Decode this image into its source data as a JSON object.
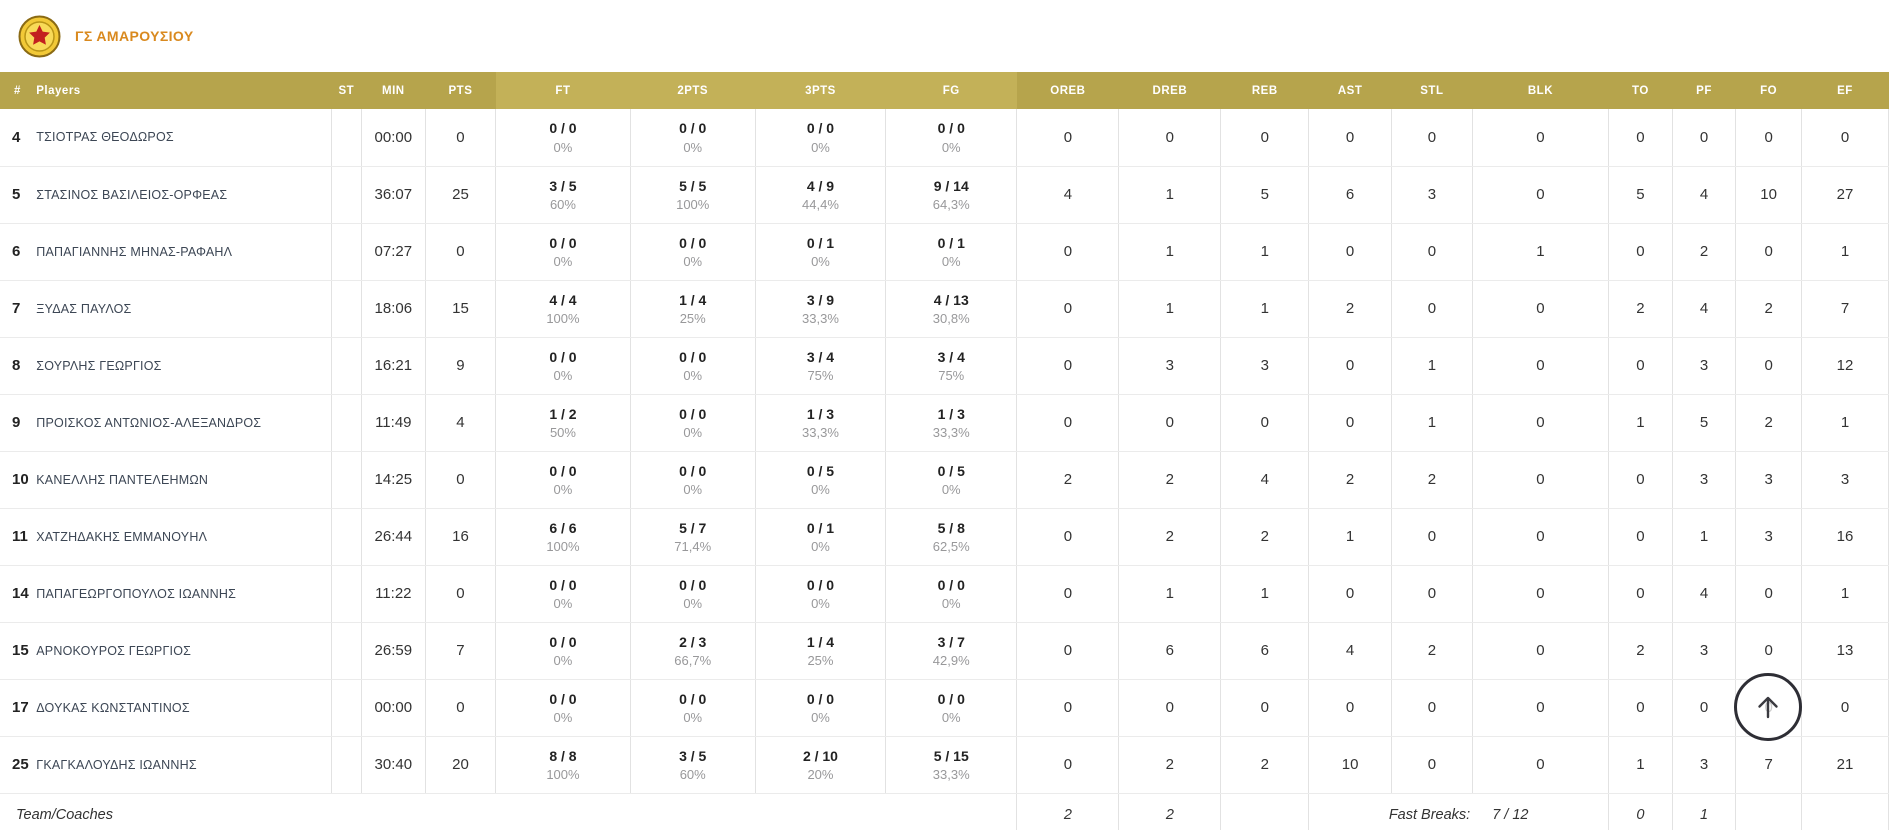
{
  "team": {
    "name": "ΓΣ ΑΜΑΡΟΥΣΙΟΥ"
  },
  "colors": {
    "header_gold": "#b6a44c",
    "header_gold_light": "#c3b158",
    "team_name_orange": "#d9891e"
  },
  "table": {
    "columns": [
      {
        "key": "num",
        "label": "#"
      },
      {
        "key": "players",
        "label": "Players"
      },
      {
        "key": "st",
        "label": "ST"
      },
      {
        "key": "min",
        "label": "MIN"
      },
      {
        "key": "pts",
        "label": "PTS"
      },
      {
        "key": "ft",
        "label": "FT",
        "shade": "light"
      },
      {
        "key": "p2",
        "label": "2PTS",
        "shade": "light"
      },
      {
        "key": "p3",
        "label": "3PTS",
        "shade": "light"
      },
      {
        "key": "fg",
        "label": "FG",
        "shade": "light"
      },
      {
        "key": "oreb",
        "label": "OREB"
      },
      {
        "key": "dreb",
        "label": "DREB"
      },
      {
        "key": "reb",
        "label": "REB"
      },
      {
        "key": "ast",
        "label": "AST"
      },
      {
        "key": "stl",
        "label": "STL"
      },
      {
        "key": "blk",
        "label": "BLK"
      },
      {
        "key": "to",
        "label": "TO"
      },
      {
        "key": "pf",
        "label": "PF"
      },
      {
        "key": "fo",
        "label": "FO"
      },
      {
        "key": "ef",
        "label": "EF"
      }
    ],
    "players": [
      {
        "num": "4",
        "name": "ΤΣΙΟΤΡΑΣ ΘΕΟΔΩΡΟΣ",
        "st": "",
        "min": "00:00",
        "pts": "0",
        "ft": "0 / 0",
        "ft_pct": "0%",
        "p2": "0 / 0",
        "p2_pct": "0%",
        "p3": "0 / 0",
        "p3_pct": "0%",
        "fg": "0 / 0",
        "fg_pct": "0%",
        "oreb": "0",
        "dreb": "0",
        "reb": "0",
        "ast": "0",
        "stl": "0",
        "blk": "0",
        "to": "0",
        "pf": "0",
        "fo": "0",
        "ef": "0"
      },
      {
        "num": "5",
        "name": "ΣΤΑΣΙΝΟΣ ΒΑΣΙΛΕΙΟΣ-ΟΡΦΕΑΣ",
        "st": "",
        "min": "36:07",
        "pts": "25",
        "ft": "3 / 5",
        "ft_pct": "60%",
        "p2": "5 / 5",
        "p2_pct": "100%",
        "p3": "4 / 9",
        "p3_pct": "44,4%",
        "fg": "9 / 14",
        "fg_pct": "64,3%",
        "oreb": "4",
        "dreb": "1",
        "reb": "5",
        "ast": "6",
        "stl": "3",
        "blk": "0",
        "to": "5",
        "pf": "4",
        "fo": "10",
        "ef": "27"
      },
      {
        "num": "6",
        "name": "ΠΑΠΑΓΙΑΝΝΗΣ ΜΗΝΑΣ-ΡΑΦΑΗΛ",
        "st": "",
        "min": "07:27",
        "pts": "0",
        "ft": "0 / 0",
        "ft_pct": "0%",
        "p2": "0 / 0",
        "p2_pct": "0%",
        "p3": "0 / 1",
        "p3_pct": "0%",
        "fg": "0 / 1",
        "fg_pct": "0%",
        "oreb": "0",
        "dreb": "1",
        "reb": "1",
        "ast": "0",
        "stl": "0",
        "blk": "1",
        "to": "0",
        "pf": "2",
        "fo": "0",
        "ef": "1"
      },
      {
        "num": "7",
        "name": "ΞΥΔΑΣ ΠΑΥΛΟΣ",
        "st": "",
        "min": "18:06",
        "pts": "15",
        "ft": "4 / 4",
        "ft_pct": "100%",
        "p2": "1 / 4",
        "p2_pct": "25%",
        "p3": "3 / 9",
        "p3_pct": "33,3%",
        "fg": "4 / 13",
        "fg_pct": "30,8%",
        "oreb": "0",
        "dreb": "1",
        "reb": "1",
        "ast": "2",
        "stl": "0",
        "blk": "0",
        "to": "2",
        "pf": "4",
        "fo": "2",
        "ef": "7"
      },
      {
        "num": "8",
        "name": "ΣΟΥΡΛΗΣ ΓΕΩΡΓΙΟΣ",
        "st": "",
        "min": "16:21",
        "pts": "9",
        "ft": "0 / 0",
        "ft_pct": "0%",
        "p2": "0 / 0",
        "p2_pct": "0%",
        "p3": "3 / 4",
        "p3_pct": "75%",
        "fg": "3 / 4",
        "fg_pct": "75%",
        "oreb": "0",
        "dreb": "3",
        "reb": "3",
        "ast": "0",
        "stl": "1",
        "blk": "0",
        "to": "0",
        "pf": "3",
        "fo": "0",
        "ef": "12"
      },
      {
        "num": "9",
        "name": "ΠΡΟΙΣΚΟΣ ΑΝΤΩΝΙΟΣ-ΑΛΕΞΑΝΔΡΟΣ",
        "st": "",
        "min": "11:49",
        "pts": "4",
        "ft": "1 / 2",
        "ft_pct": "50%",
        "p2": "0 / 0",
        "p2_pct": "0%",
        "p3": "1 / 3",
        "p3_pct": "33,3%",
        "fg": "1 / 3",
        "fg_pct": "33,3%",
        "oreb": "0",
        "dreb": "0",
        "reb": "0",
        "ast": "0",
        "stl": "1",
        "blk": "0",
        "to": "1",
        "pf": "5",
        "fo": "2",
        "ef": "1"
      },
      {
        "num": "10",
        "name": "ΚΑΝΕΛΛΗΣ ΠΑΝΤΕΛΕΗΜΩΝ",
        "st": "",
        "min": "14:25",
        "pts": "0",
        "ft": "0 / 0",
        "ft_pct": "0%",
        "p2": "0 / 0",
        "p2_pct": "0%",
        "p3": "0 / 5",
        "p3_pct": "0%",
        "fg": "0 / 5",
        "fg_pct": "0%",
        "oreb": "2",
        "dreb": "2",
        "reb": "4",
        "ast": "2",
        "stl": "2",
        "blk": "0",
        "to": "0",
        "pf": "3",
        "fo": "3",
        "ef": "3"
      },
      {
        "num": "11",
        "name": "ΧΑΤΖΗΔΑΚΗΣ ΕΜΜΑΝΟΥΗΛ",
        "st": "",
        "min": "26:44",
        "pts": "16",
        "ft": "6 / 6",
        "ft_pct": "100%",
        "p2": "5 / 7",
        "p2_pct": "71,4%",
        "p3": "0 / 1",
        "p3_pct": "0%",
        "fg": "5 / 8",
        "fg_pct": "62,5%",
        "oreb": "0",
        "dreb": "2",
        "reb": "2",
        "ast": "1",
        "stl": "0",
        "blk": "0",
        "to": "0",
        "pf": "1",
        "fo": "3",
        "ef": "16"
      },
      {
        "num": "14",
        "name": "ΠΑΠΑΓΕΩΡΓΟΠΟΥΛΟΣ ΙΩΑΝΝΗΣ",
        "st": "",
        "min": "11:22",
        "pts": "0",
        "ft": "0 / 0",
        "ft_pct": "0%",
        "p2": "0 / 0",
        "p2_pct": "0%",
        "p3": "0 / 0",
        "p3_pct": "0%",
        "fg": "0 / 0",
        "fg_pct": "0%",
        "oreb": "0",
        "dreb": "1",
        "reb": "1",
        "ast": "0",
        "stl": "0",
        "blk": "0",
        "to": "0",
        "pf": "4",
        "fo": "0",
        "ef": "1"
      },
      {
        "num": "15",
        "name": "ΑΡΝΟΚΟΥΡΟΣ ΓΕΩΡΓΙΟΣ",
        "st": "",
        "min": "26:59",
        "pts": "7",
        "ft": "0 / 0",
        "ft_pct": "0%",
        "p2": "2 / 3",
        "p2_pct": "66,7%",
        "p3": "1 / 4",
        "p3_pct": "25%",
        "fg": "3 / 7",
        "fg_pct": "42,9%",
        "oreb": "0",
        "dreb": "6",
        "reb": "6",
        "ast": "4",
        "stl": "2",
        "blk": "0",
        "to": "2",
        "pf": "3",
        "fo": "0",
        "ef": "13"
      },
      {
        "num": "17",
        "name": "ΔΟΥΚΑΣ ΚΩΝΣΤΑΝΤΙΝΟΣ",
        "st": "",
        "min": "00:00",
        "pts": "0",
        "ft": "0 / 0",
        "ft_pct": "0%",
        "p2": "0 / 0",
        "p2_pct": "0%",
        "p3": "0 / 0",
        "p3_pct": "0%",
        "fg": "0 / 0",
        "fg_pct": "0%",
        "oreb": "0",
        "dreb": "0",
        "reb": "0",
        "ast": "0",
        "stl": "0",
        "blk": "0",
        "to": "0",
        "pf": "0",
        "fo": "0",
        "ef": "0"
      },
      {
        "num": "25",
        "name": "ΓΚΑΓΚΑΛΟΥΔΗΣ ΙΩΑΝΝΗΣ",
        "st": "",
        "min": "30:40",
        "pts": "20",
        "ft": "8 / 8",
        "ft_pct": "100%",
        "p2": "3 / 5",
        "p2_pct": "60%",
        "p3": "2 / 10",
        "p3_pct": "20%",
        "fg": "5 / 15",
        "fg_pct": "33,3%",
        "oreb": "0",
        "dreb": "2",
        "reb": "2",
        "ast": "10",
        "stl": "0",
        "blk": "0",
        "to": "1",
        "pf": "3",
        "fo": "7",
        "ef": "21"
      }
    ],
    "footer": {
      "label": "Team/Coaches",
      "oreb": "2",
      "dreb": "2",
      "fast_breaks_label": "Fast Breaks:",
      "fast_breaks_value": "7 / 12",
      "to": "0",
      "pf": "1"
    }
  },
  "scroll_top": {
    "icon": "arrow-up"
  }
}
